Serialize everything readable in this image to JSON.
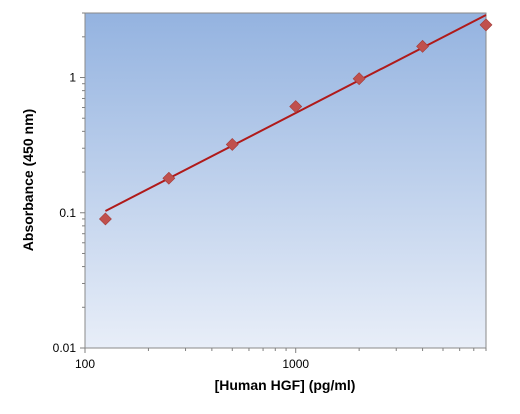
{
  "chart_data": {
    "type": "scatter",
    "title": "",
    "xlabel": "[Human HGF] (pg/ml)",
    "ylabel": "Absorbance (450 nm)",
    "xscale": "log",
    "yscale": "log",
    "xlim": [
      100,
      8000
    ],
    "ylim": [
      0.01,
      3
    ],
    "x_ticks": [
      {
        "value": 100,
        "label": "100"
      },
      {
        "value": 1000,
        "label": "1000"
      }
    ],
    "y_ticks": [
      {
        "value": 0.01,
        "label": "0.01"
      },
      {
        "value": 0.1,
        "label": "0.1"
      },
      {
        "value": 1,
        "label": "1"
      }
    ],
    "series": [
      {
        "x": [
          125,
          250,
          500,
          1000,
          2000,
          4000,
          8000
        ],
        "y": [
          0.09,
          0.18,
          0.32,
          0.61,
          0.98,
          1.7,
          2.45
        ]
      }
    ],
    "fit_line": {
      "x": [
        125,
        8000
      ],
      "y": [
        0.103,
        2.9
      ]
    },
    "legend": "none",
    "grid": false,
    "colors": {
      "marker": "#c0504d",
      "fit_line": "#b01a1a",
      "plot_bg_top": "#94b3e0",
      "plot_bg_bottom": "#e8eef8"
    }
  }
}
